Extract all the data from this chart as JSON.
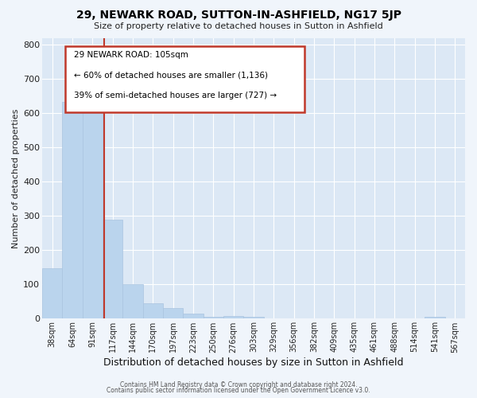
{
  "title": "29, NEWARK ROAD, SUTTON-IN-ASHFIELD, NG17 5JP",
  "subtitle": "Size of property relative to detached houses in Sutton in Ashfield",
  "xlabel": "Distribution of detached houses by size in Sutton in Ashfield",
  "ylabel": "Number of detached properties",
  "bar_labels": [
    "38sqm",
    "64sqm",
    "91sqm",
    "117sqm",
    "144sqm",
    "170sqm",
    "197sqm",
    "223sqm",
    "250sqm",
    "276sqm",
    "303sqm",
    "329sqm",
    "356sqm",
    "382sqm",
    "409sqm",
    "435sqm",
    "461sqm",
    "488sqm",
    "514sqm",
    "541sqm",
    "567sqm"
  ],
  "bar_values": [
    148,
    633,
    627,
    288,
    101,
    45,
    32,
    14,
    5,
    7,
    5,
    0,
    0,
    0,
    0,
    0,
    0,
    0,
    0,
    6,
    0
  ],
  "bar_color": "#bad4ed",
  "bar_edge_color": "#aac4e0",
  "vline_x_index": 2.57,
  "vline_color": "#c0392b",
  "annotation_title": "29 NEWARK ROAD: 105sqm",
  "annotation_line1": "← 60% of detached houses are smaller (1,136)",
  "annotation_line2": "39% of semi-detached houses are larger (727) →",
  "annotation_box_color": "#c0392b",
  "ylim": [
    0,
    820
  ],
  "yticks": [
    0,
    100,
    200,
    300,
    400,
    500,
    600,
    700,
    800
  ],
  "footer1": "Contains HM Land Registry data © Crown copyright and database right 2024.",
  "footer2": "Contains public sector information licensed under the Open Government Licence v3.0.",
  "bg_color": "#dce8f5",
  "plot_bg_color": "#dce8f5",
  "grid_color": "#ffffff",
  "fig_bg_color": "#f0f5fb"
}
